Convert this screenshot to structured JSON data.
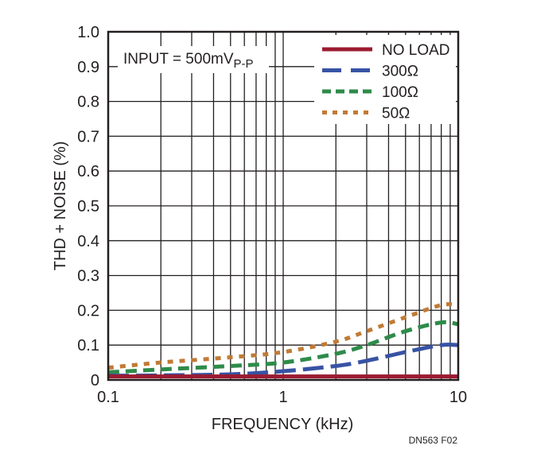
{
  "chart_data": {
    "type": "line",
    "title": "",
    "xlabel": "FREQUENCY (kHz)",
    "ylabel": "THD + NOISE (%)",
    "xscale": "log",
    "xlim": [
      0.1,
      10
    ],
    "ylim": [
      0,
      1.0
    ],
    "grid": true,
    "x_ticks": [
      {
        "value": 0.1,
        "label": "0.1"
      },
      {
        "value": 1,
        "label": "1"
      },
      {
        "value": 10,
        "label": "10"
      }
    ],
    "y_ticks": [
      {
        "value": 0,
        "label": "0"
      },
      {
        "value": 0.1,
        "label": "0.1"
      },
      {
        "value": 0.2,
        "label": "0.2"
      },
      {
        "value": 0.3,
        "label": "0.3"
      },
      {
        "value": 0.4,
        "label": "0.4"
      },
      {
        "value": 0.5,
        "label": "0.5"
      },
      {
        "value": 0.6,
        "label": "0.6"
      },
      {
        "value": 0.7,
        "label": "0.7"
      },
      {
        "value": 0.8,
        "label": "0.8"
      },
      {
        "value": 0.9,
        "label": "0.9"
      },
      {
        "value": 1.0,
        "label": "1.0"
      }
    ],
    "annotation": {
      "main": "INPUT = 500mV",
      "subscript": "P-P"
    },
    "legend_position": "top-right",
    "series": [
      {
        "name": "NO LOAD",
        "color": "#9b1b30",
        "dash": "solid",
        "x": [
          0.1,
          0.2,
          0.5,
          1,
          2,
          5,
          10
        ],
        "y": [
          0.01,
          0.01,
          0.01,
          0.01,
          0.01,
          0.01,
          0.01
        ]
      },
      {
        "name": "300Ω",
        "color": "#3753a4",
        "dash": "long",
        "x": [
          0.1,
          0.2,
          0.5,
          1,
          2,
          3,
          5,
          8,
          10
        ],
        "y": [
          0.012,
          0.013,
          0.016,
          0.025,
          0.04,
          0.055,
          0.08,
          0.1,
          0.1
        ]
      },
      {
        "name": "100Ω",
        "color": "#2e8b4a",
        "dash": "medium",
        "x": [
          0.1,
          0.2,
          0.5,
          1,
          2,
          3,
          5,
          8,
          10
        ],
        "y": [
          0.022,
          0.03,
          0.04,
          0.05,
          0.075,
          0.1,
          0.14,
          0.165,
          0.16
        ]
      },
      {
        "name": "50Ω",
        "color": "#c17a35",
        "dash": "short",
        "x": [
          0.1,
          0.2,
          0.5,
          1,
          2,
          3,
          5,
          8,
          10
        ],
        "y": [
          0.035,
          0.05,
          0.065,
          0.08,
          0.11,
          0.14,
          0.18,
          0.215,
          0.215
        ]
      }
    ]
  },
  "footer": {
    "figure_id": "DN563 F02"
  }
}
